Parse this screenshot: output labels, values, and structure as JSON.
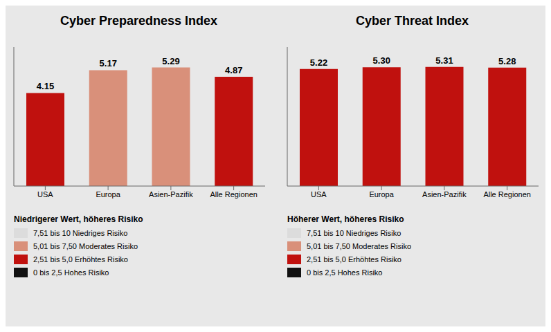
{
  "chart_data": [
    {
      "type": "bar",
      "title": "Cyber Preparedness Index",
      "subtitle": "Niedrigerer Wert, höheres Risiko",
      "categories": [
        "USA",
        "Europa",
        "Asien-Pazifik",
        "Alle Regionen"
      ],
      "values": [
        4.15,
        5.17,
        5.29,
        4.87
      ],
      "value_labels": [
        "4.15",
        "5.17",
        "5.29",
        "4.87"
      ],
      "colors": [
        "#c0110e",
        "#d9907a",
        "#d9907a",
        "#c0110e"
      ],
      "ylim": [
        0,
        6.2
      ],
      "grid": false,
      "data_labels": true,
      "tick_labels": "x",
      "legend_items": [
        {
          "label": "7,51 bis 10 Niedriges Risiko",
          "color": "#dcdcdc"
        },
        {
          "label": "5,01 bis 7,50 Moderates Risiko",
          "color": "#d9907a"
        },
        {
          "label": "2,51 bis 5,0 Erhöhtes Risiko",
          "color": "#c0110e"
        },
        {
          "label": "0 bis 2,5 Hohes Risiko",
          "color": "#111111"
        }
      ]
    },
    {
      "type": "bar",
      "title": "Cyber Threat Index",
      "subtitle": "Höherer Wert, höheres Risiko",
      "categories": [
        "USA",
        "Europa",
        "Asien-Pazifik",
        "Alle Regionen"
      ],
      "values": [
        5.22,
        5.3,
        5.31,
        5.28
      ],
      "value_labels": [
        "5.22",
        "5.30",
        "5.31",
        "5.28"
      ],
      "colors": [
        "#c0110e",
        "#c0110e",
        "#c0110e",
        "#c0110e"
      ],
      "ylim": [
        0,
        6.2
      ],
      "grid": false,
      "data_labels": true,
      "tick_labels": "x",
      "legend_items": [
        {
          "label": "7,51 bis 10 Niedriges Risiko",
          "color": "#dcdcdc"
        },
        {
          "label": "5,01 bis 7,50 Moderates Risiko",
          "color": "#d9907a"
        },
        {
          "label": "2,51 bis 5,0 Erhöhtes Risiko",
          "color": "#c0110e"
        },
        {
          "label": "0 bis 2,5 Hohes Risiko",
          "color": "#111111"
        }
      ]
    }
  ]
}
